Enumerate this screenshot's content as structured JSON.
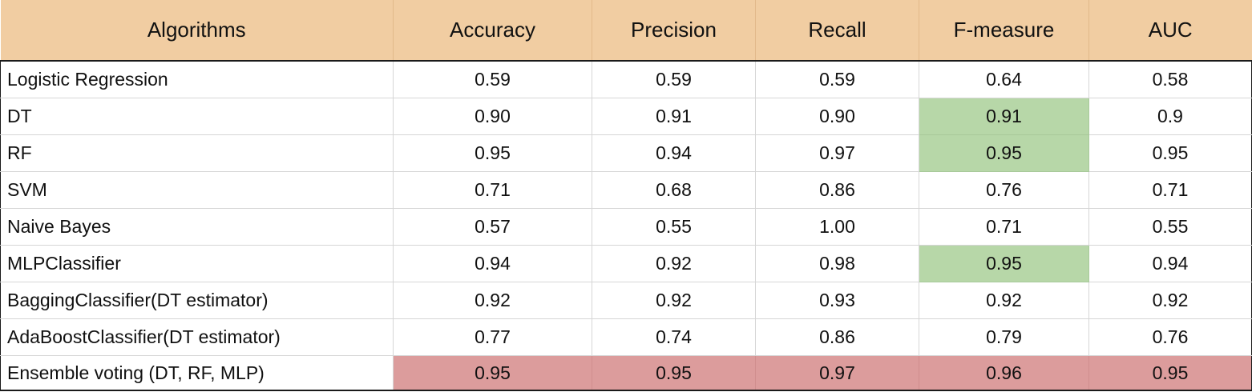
{
  "table": {
    "headers": [
      "Algorithms",
      "Accuracy",
      "Precision",
      "Recall",
      "F-measure",
      "AUC"
    ],
    "rows": [
      {
        "name": "Logistic Regression",
        "values": [
          "0.59",
          "0.59",
          "0.59",
          "0.64",
          "0.58"
        ]
      },
      {
        "name": "DT",
        "values": [
          "0.90",
          "0.91",
          "0.90",
          "0.91",
          "0.9"
        ]
      },
      {
        "name": "RF",
        "values": [
          "0.95",
          "0.94",
          "0.97",
          "0.95",
          "0.95"
        ]
      },
      {
        "name": "SVM",
        "values": [
          "0.71",
          "0.68",
          "0.86",
          "0.76",
          "0.71"
        ]
      },
      {
        "name": "Naive Bayes",
        "values": [
          "0.57",
          "0.55",
          "1.00",
          "0.71",
          "0.55"
        ]
      },
      {
        "name": "MLPClassifier",
        "values": [
          "0.94",
          "0.92",
          "0.98",
          "0.95",
          "0.94"
        ]
      },
      {
        "name": "BaggingClassifier(DT estimator)",
        "values": [
          "0.92",
          "0.92",
          "0.93",
          "0.92",
          "0.92"
        ]
      },
      {
        "name": "AdaBoostClassifier(DT estimator)",
        "values": [
          "0.77",
          "0.74",
          "0.86",
          "0.79",
          "0.76"
        ]
      },
      {
        "name": "Ensemble voting (DT, RF, MLP)",
        "values": [
          "0.95",
          "0.95",
          "0.97",
          "0.96",
          "0.95"
        ]
      }
    ],
    "colors": {
      "header_fill": "#f1cda2",
      "highlight_green": "#b7d7a8",
      "highlight_red": "#dc9c9c"
    }
  }
}
